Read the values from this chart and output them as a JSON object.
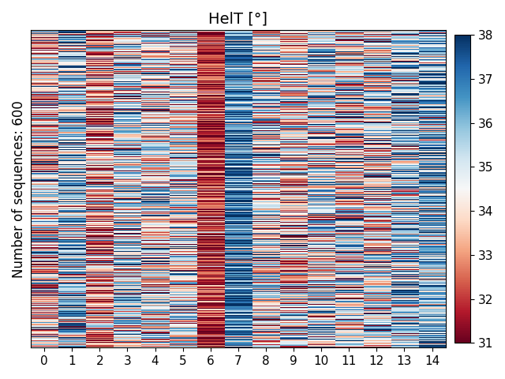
{
  "title": "HelT [°]",
  "ylabel": "Number of sequences: 600",
  "xlabel": "",
  "n_rows": 600,
  "n_cols": 15,
  "vmin": 31,
  "vmax": 38,
  "colormap": "RdBu",
  "xtick_labels": [
    "0",
    "1",
    "2",
    "3",
    "4",
    "5",
    "6",
    "7",
    "8",
    "9",
    "10",
    "11",
    "12",
    "13",
    "14"
  ],
  "colorbar_ticks": [
    31,
    32,
    33,
    34,
    35,
    36,
    37,
    38
  ],
  "seed": 42,
  "col_means": [
    34.0,
    35.5,
    33.0,
    35.0,
    34.5,
    34.5,
    31.8,
    37.0,
    34.5,
    34.0,
    35.0,
    34.5,
    34.5,
    35.5,
    36.0
  ],
  "col_stds": [
    2.2,
    2.0,
    2.0,
    2.0,
    2.0,
    1.8,
    1.2,
    1.5,
    2.0,
    2.0,
    2.0,
    2.0,
    2.0,
    2.0,
    1.8
  ]
}
